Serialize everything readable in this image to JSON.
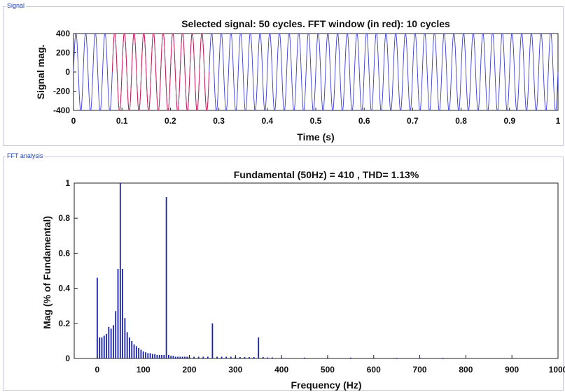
{
  "panels": {
    "signal_label": "Signal",
    "fft_label": "FFT analysis"
  },
  "chart_data": [
    {
      "type": "line",
      "title": "Selected signal: 50 cycles. FFT window (in red): 10 cycles",
      "xlabel": "Time (s)",
      "ylabel": "Signal mag.",
      "xlim": [
        0,
        1
      ],
      "ylim": [
        -400,
        400
      ],
      "x_ticks": [
        "0",
        "0.1",
        "0.2",
        "0.3",
        "0.4",
        "0.5",
        "0.6",
        "0.7",
        "0.8",
        "0.9",
        "1"
      ],
      "y_ticks": [
        "400",
        "200",
        "0",
        "-200",
        "-400"
      ],
      "series": [
        {
          "color": "#3a3ad8",
          "frequency_hz": 50,
          "amplitude": 410,
          "x_range": [
            0,
            1
          ]
        },
        {
          "color": "#d81a4a",
          "frequency_hz": 50,
          "amplitude": 410,
          "x_range": [
            0.08,
            0.28
          ]
        }
      ]
    },
    {
      "type": "bar",
      "title": "Fundamental (50Hz) = 410 , THD= 1.13%",
      "xlabel": "Frequency (Hz)",
      "ylabel": "Mag (% of Fundamental)",
      "xlim": [
        -50,
        1000
      ],
      "ylim": [
        0,
        1
      ],
      "x_ticks": [
        "0",
        "100",
        "200",
        "300",
        "400",
        "500",
        "600",
        "700",
        "800",
        "900",
        "1000"
      ],
      "y_ticks": [
        "1",
        "0.8",
        "0.6",
        "0.4",
        "0.2",
        "0"
      ],
      "color": "#1a22a8",
      "x": [
        0,
        5,
        10,
        15,
        20,
        25,
        30,
        35,
        40,
        45,
        50,
        55,
        60,
        65,
        70,
        75,
        80,
        85,
        90,
        95,
        100,
        105,
        110,
        115,
        120,
        125,
        130,
        135,
        140,
        145,
        150,
        155,
        160,
        165,
        170,
        175,
        180,
        185,
        190,
        195,
        200,
        210,
        220,
        230,
        240,
        250,
        260,
        270,
        280,
        290,
        300,
        310,
        320,
        330,
        340,
        350,
        360,
        370,
        380,
        400,
        450,
        500,
        550,
        600,
        650,
        700,
        750
      ],
      "values": [
        0.46,
        0.12,
        0.12,
        0.13,
        0.14,
        0.18,
        0.17,
        0.19,
        0.27,
        0.51,
        1.0,
        0.51,
        0.23,
        0.15,
        0.12,
        0.1,
        0.08,
        0.07,
        0.06,
        0.05,
        0.04,
        0.035,
        0.03,
        0.03,
        0.025,
        0.025,
        0.02,
        0.02,
        0.02,
        0.02,
        0.92,
        0.02,
        0.015,
        0.015,
        0.01,
        0.01,
        0.01,
        0.01,
        0.01,
        0.01,
        0.01,
        0.01,
        0.01,
        0.01,
        0.01,
        0.2,
        0.01,
        0.01,
        0.01,
        0.01,
        0.01,
        0.008,
        0.008,
        0.008,
        0.008,
        0.12,
        0.008,
        0.006,
        0.006,
        0.005,
        0.005,
        0.005,
        0.005,
        0.004,
        0.004,
        0.004,
        0.004
      ]
    }
  ]
}
